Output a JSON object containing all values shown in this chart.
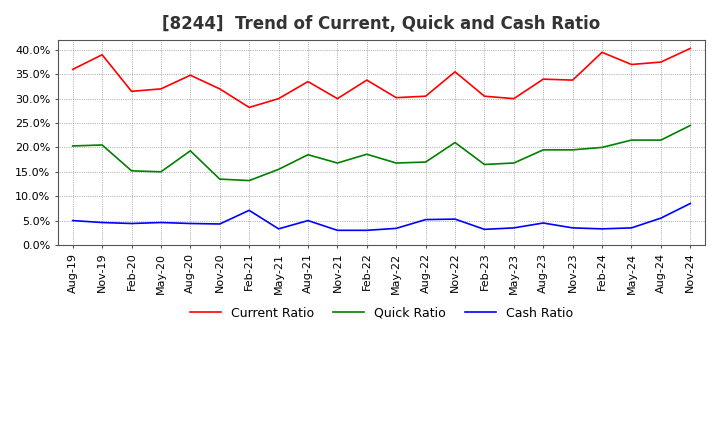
{
  "title": "[8244]  Trend of Current, Quick and Cash Ratio",
  "ylim": [
    0.0,
    0.42
  ],
  "yticks": [
    0.0,
    0.05,
    0.1,
    0.15,
    0.2,
    0.25,
    0.3,
    0.35,
    0.4
  ],
  "xlabel_dates": [
    "Aug-19",
    "Nov-19",
    "Feb-20",
    "May-20",
    "Aug-20",
    "Nov-20",
    "Feb-21",
    "May-21",
    "Aug-21",
    "Nov-21",
    "Feb-22",
    "May-22",
    "Aug-22",
    "Nov-22",
    "Feb-23",
    "May-23",
    "Aug-23",
    "Nov-23",
    "Feb-24",
    "May-24",
    "Aug-24",
    "Nov-24"
  ],
  "current_ratio": [
    0.36,
    0.39,
    0.315,
    0.32,
    0.348,
    0.32,
    0.282,
    0.3,
    0.335,
    0.3,
    0.338,
    0.302,
    0.305,
    0.355,
    0.305,
    0.3,
    0.34,
    0.338,
    0.395,
    0.37,
    0.375,
    0.403
  ],
  "quick_ratio": [
    0.203,
    0.205,
    0.152,
    0.15,
    0.193,
    0.135,
    0.132,
    0.155,
    0.185,
    0.168,
    0.186,
    0.168,
    0.17,
    0.21,
    0.165,
    0.168,
    0.195,
    0.195,
    0.2,
    0.215,
    0.215,
    0.245
  ],
  "cash_ratio": [
    0.05,
    0.046,
    0.044,
    0.046,
    0.044,
    0.043,
    0.071,
    0.033,
    0.05,
    0.03,
    0.03,
    0.034,
    0.052,
    0.053,
    0.032,
    0.035,
    0.045,
    0.035,
    0.033,
    0.035,
    0.055,
    0.085
  ],
  "current_color": "#FF0000",
  "quick_color": "#008000",
  "cash_color": "#0000FF",
  "background_color": "#FFFFFF",
  "plot_bg_color": "#FFFFFF",
  "grid_color": "#777777",
  "title_fontsize": 12,
  "tick_fontsize": 8,
  "legend_fontsize": 9
}
